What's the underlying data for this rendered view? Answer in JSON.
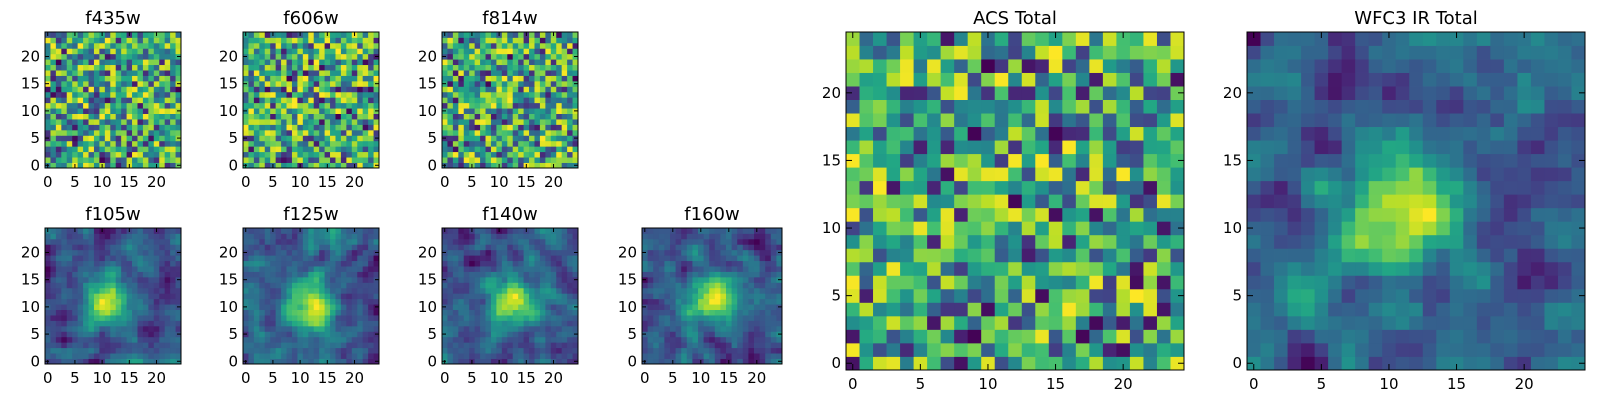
{
  "chart_data": {
    "type": "heatmap",
    "colormap": "viridis",
    "panels": [
      {
        "id": "f435w",
        "title": "f435w",
        "size": "small",
        "grid_size": 25,
        "xticks": [
          0,
          5,
          10,
          15,
          20
        ],
        "yticks": [
          0,
          5,
          10,
          15,
          20
        ],
        "xlim": [
          -0.5,
          24.5
        ],
        "ylim": [
          -0.5,
          24.5
        ],
        "pattern": "noise"
      },
      {
        "id": "f606w",
        "title": "f606w",
        "size": "small",
        "grid_size": 25,
        "xticks": [
          0,
          5,
          10,
          15,
          20
        ],
        "yticks": [
          0,
          5,
          10,
          15,
          20
        ],
        "xlim": [
          -0.5,
          24.5
        ],
        "ylim": [
          -0.5,
          24.5
        ],
        "pattern": "noise"
      },
      {
        "id": "f814w",
        "title": "f814w",
        "size": "small",
        "grid_size": 25,
        "xticks": [
          0,
          5,
          10,
          15,
          20
        ],
        "yticks": [
          0,
          5,
          10,
          15,
          20
        ],
        "xlim": [
          -0.5,
          24.5
        ],
        "ylim": [
          -0.5,
          24.5
        ],
        "pattern": "noise"
      },
      {
        "id": "f105w",
        "title": "f105w",
        "size": "small",
        "grid_size": 25,
        "xticks": [
          0,
          5,
          10,
          15,
          20
        ],
        "yticks": [
          0,
          5,
          10,
          15,
          20
        ],
        "xlim": [
          -0.5,
          24.5
        ],
        "ylim": [
          -0.5,
          24.5
        ],
        "pattern": "blob",
        "peak": [
          11,
          11
        ]
      },
      {
        "id": "f125w",
        "title": "f125w",
        "size": "small",
        "grid_size": 25,
        "xticks": [
          0,
          5,
          10,
          15,
          20
        ],
        "yticks": [
          0,
          5,
          10,
          15,
          20
        ],
        "xlim": [
          -0.5,
          24.5
        ],
        "ylim": [
          -0.5,
          24.5
        ],
        "pattern": "blob",
        "peak": [
          12,
          11
        ]
      },
      {
        "id": "f140w",
        "title": "f140w",
        "size": "small",
        "grid_size": 25,
        "xticks": [
          0,
          5,
          10,
          15,
          20
        ],
        "yticks": [
          0,
          5,
          10,
          15,
          20
        ],
        "xlim": [
          -0.5,
          24.5
        ],
        "ylim": [
          -0.5,
          24.5
        ],
        "pattern": "blob",
        "peak": [
          13,
          11
        ]
      },
      {
        "id": "f160w",
        "title": "f160w",
        "size": "small",
        "grid_size": 25,
        "xticks": [
          0,
          5,
          10,
          15,
          20
        ],
        "yticks": [
          0,
          5,
          10,
          15,
          20
        ],
        "xlim": [
          -0.5,
          24.5
        ],
        "ylim": [
          -0.5,
          24.5
        ],
        "pattern": "blob",
        "peak": [
          12,
          12
        ]
      },
      {
        "id": "acs-total",
        "title": "ACS Total",
        "size": "large",
        "grid_size": 25,
        "xticks": [
          0,
          5,
          10,
          15,
          20
        ],
        "yticks": [
          0,
          5,
          10,
          15,
          20
        ],
        "xlim": [
          -0.5,
          24.5
        ],
        "ylim": [
          -0.5,
          24.5
        ],
        "pattern": "noise"
      },
      {
        "id": "wfc3-ir-total",
        "title": "WFC3 IR Total",
        "size": "large",
        "grid_size": 25,
        "xticks": [
          0,
          5,
          10,
          15,
          20
        ],
        "yticks": [
          0,
          5,
          10,
          15,
          20
        ],
        "xlim": [
          -0.5,
          24.5
        ],
        "ylim": [
          -0.5,
          24.5
        ],
        "pattern": "blob",
        "peak": [
          11,
          11
        ]
      }
    ]
  }
}
